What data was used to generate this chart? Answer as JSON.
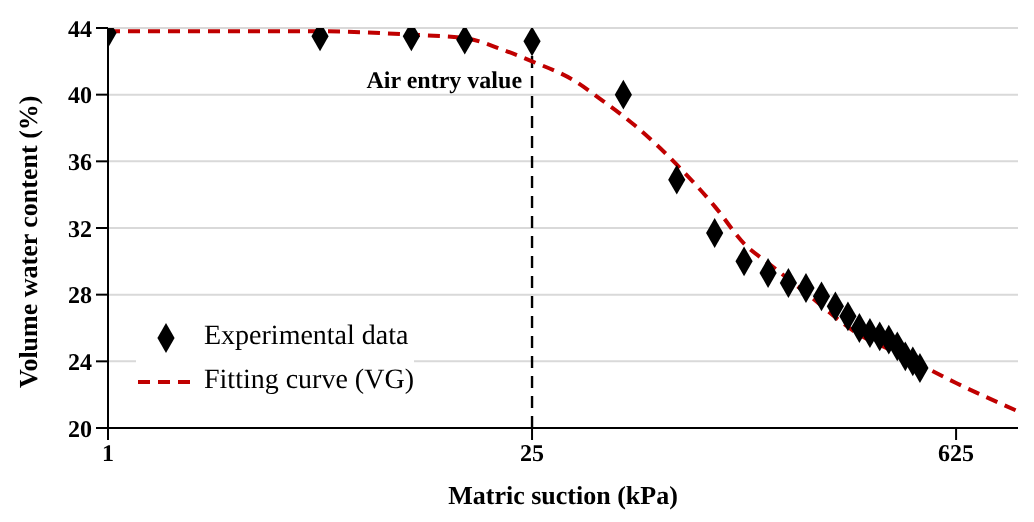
{
  "chart_data": {
    "type": "scatter",
    "xlabel": "Matric suction (kPa)",
    "ylabel": "Volume water content (%)",
    "log": "x",
    "xlim": [
      1,
      1000
    ],
    "xticks": [
      1,
      25,
      625
    ],
    "ylim": [
      20,
      44
    ],
    "yticks": [
      20,
      24,
      28,
      32,
      36,
      40,
      44
    ],
    "grid": "y",
    "legend": "bottom left",
    "ref_lines": [
      {
        "axis": "x",
        "value": 25,
        "label": "Air entry value",
        "color": "#000000",
        "line_style": "dashed"
      }
    ],
    "series": [
      {
        "name": "Experimental data",
        "marker": "diamond",
        "color": "#000000",
        "x": [
          1,
          5,
          10,
          15,
          25,
          50,
          75,
          100,
          125,
          150,
          175,
          200,
          225,
          250,
          275,
          300,
          325,
          350,
          375,
          400,
          425,
          450,
          475
        ],
        "values": [
          43.7,
          43.5,
          43.5,
          43.3,
          43.2,
          40.0,
          34.9,
          31.7,
          30.0,
          29.3,
          28.7,
          28.4,
          27.9,
          27.3,
          26.7,
          26.0,
          25.7,
          25.5,
          25.3,
          24.9,
          24.3,
          24.0,
          23.6
        ]
      },
      {
        "name": "Fitting curve (VG)",
        "type": "line",
        "marker": "none",
        "line_style": "dashed",
        "color": "#c00000",
        "x": [
          1,
          3,
          5,
          10,
          15,
          20,
          25,
          34,
          43,
          55,
          75,
          100,
          126,
          150,
          200,
          300,
          400,
          625,
          1000
        ],
        "values": [
          43.8,
          43.8,
          43.8,
          43.6,
          43.4,
          42.7,
          42.0,
          40.9,
          39.6,
          38.1,
          35.8,
          33.3,
          31.0,
          29.9,
          28.1,
          25.6,
          24.5,
          22.7,
          21.0
        ]
      }
    ]
  }
}
